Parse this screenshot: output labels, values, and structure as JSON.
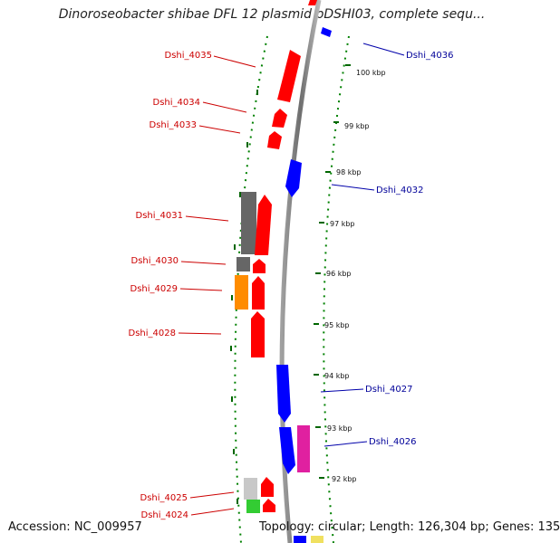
{
  "header": {
    "title": "Dinoroseobacter shibae DFL 12 plasmid pDSHI03, complete sequ..."
  },
  "footer": {
    "accession": "Accession: NC_009957",
    "summary": "Topology: circular; Length: 126,304 bp; Genes: 135"
  },
  "colors": {
    "red": "#ff0000",
    "blue": "#0000ff",
    "gray": "#666666",
    "orange": "#ff8c00",
    "magenta": "#e020a0",
    "green": "#33cc33",
    "lightgray": "#c8c8c8",
    "yellow": "#f0e060",
    "left_label": "#cc0000",
    "right_label": "#000099",
    "backbone": "#8c8c8c",
    "ticks": "#006600"
  },
  "kbp_ticks": [
    "100 kbp",
    "99 kbp",
    "98 kbp",
    "97 kbp",
    "96 kbp",
    "95 kbp",
    "94 kbp",
    "93 kbp",
    "92 kbp"
  ],
  "genes_left": [
    "Dshi_4035",
    "Dshi_4034",
    "Dshi_4033",
    "Dshi_4031",
    "Dshi_4030",
    "Dshi_4029",
    "Dshi_4028",
    "Dshi_4025",
    "Dshi_4024"
  ],
  "genes_right": [
    "Dshi_4036",
    "Dshi_4032",
    "Dshi_4027",
    "Dshi_4026"
  ]
}
